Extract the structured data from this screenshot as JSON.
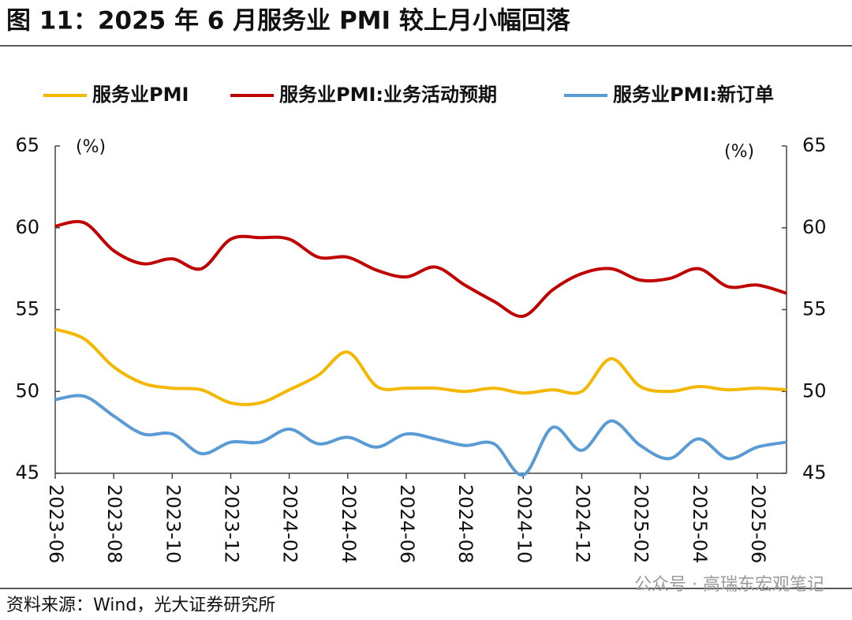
{
  "chart_data": {
    "type": "line",
    "title": "图 11：2025 年 6 月服务业 PMI 较上月小幅回落",
    "y_unit": "(%)",
    "y2_unit": "(%)",
    "source": "资料来源：Wind，光大证券研究所",
    "watermark": "公众号 · 高瑞东宏观笔记",
    "categories": [
      "2023-06",
      null,
      "2023-08",
      null,
      "2023-10",
      null,
      "2023-12",
      null,
      "2024-02",
      null,
      "2024-04",
      null,
      "2024-06",
      null,
      "2024-08",
      null,
      "2024-10",
      null,
      "2024-12",
      null,
      "2025-02",
      null,
      "2025-04",
      null,
      "2025-06",
      null
    ],
    "ylim": [
      45,
      65
    ],
    "yticks": [
      45,
      50,
      55,
      60,
      65
    ],
    "y2lim": [
      45,
      65
    ],
    "y2ticks": [
      45,
      50,
      55,
      60,
      65
    ],
    "grid": false,
    "legend": "top",
    "series": [
      {
        "name": "服务业PMI",
        "color": "#f5b800",
        "values": [
          53.8,
          53.2,
          51.5,
          50.5,
          50.2,
          50.1,
          49.3,
          49.3,
          50.1,
          51.0,
          52.4,
          50.3,
          50.2,
          50.2,
          50.0,
          50.2,
          49.9,
          50.1,
          50.0,
          52.0,
          50.3,
          50.0,
          50.3,
          50.1,
          50.2,
          50.1
        ]
      },
      {
        "name": "服务业PMI:业务活动预期",
        "color": "#c00000",
        "values": [
          60.1,
          60.3,
          58.6,
          57.8,
          58.1,
          57.5,
          59.3,
          59.4,
          59.3,
          58.2,
          58.2,
          57.4,
          57.0,
          57.6,
          56.5,
          55.5,
          54.6,
          56.2,
          57.2,
          57.5,
          56.8,
          56.9,
          57.5,
          56.4,
          56.5,
          56.0
        ]
      },
      {
        "name": "服务业PMI:新订单",
        "color": "#5b9bd5",
        "values": [
          49.5,
          49.7,
          48.5,
          47.4,
          47.4,
          46.2,
          46.9,
          46.9,
          47.7,
          46.8,
          47.2,
          46.6,
          47.4,
          47.1,
          46.7,
          46.8,
          44.9,
          47.8,
          46.4,
          48.2,
          46.7,
          45.9,
          47.1,
          45.9,
          46.6,
          46.9
        ]
      }
    ]
  }
}
